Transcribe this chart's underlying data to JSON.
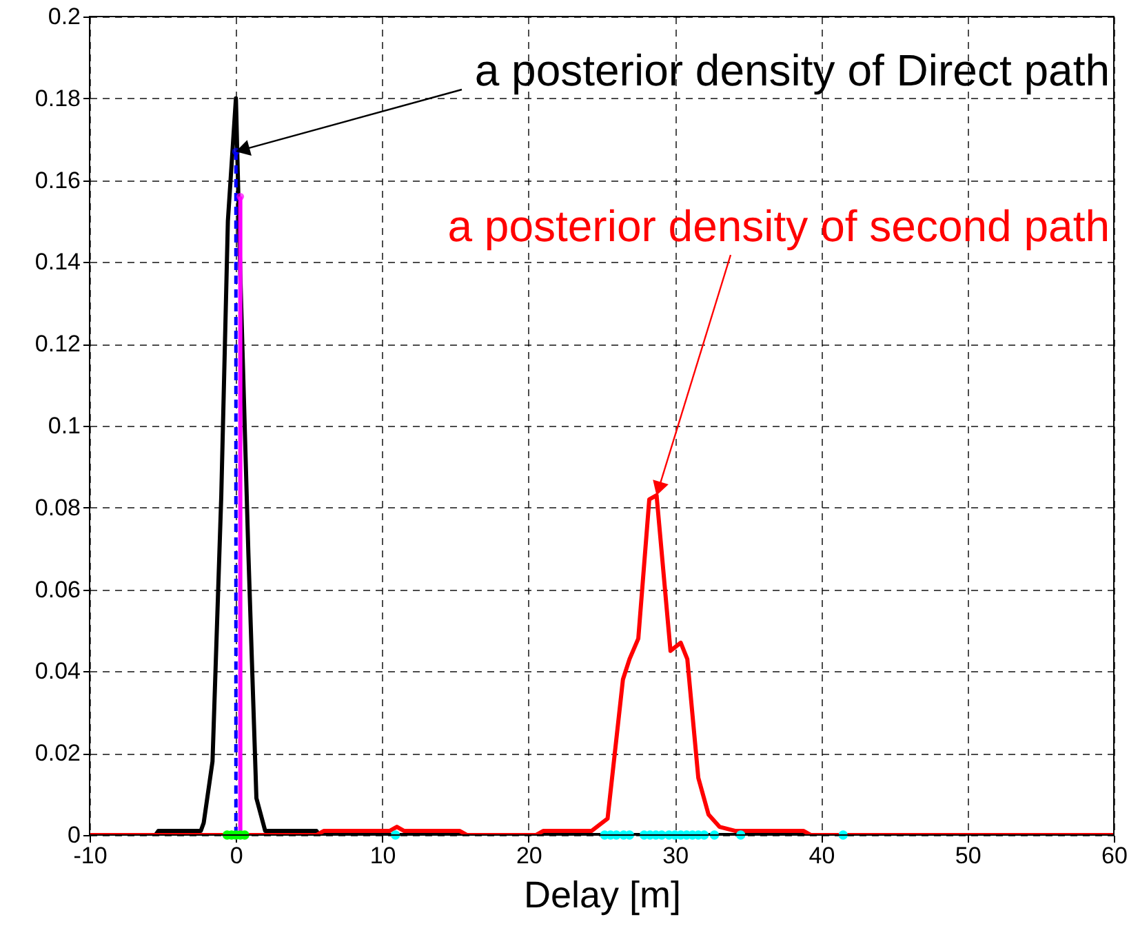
{
  "chart_data": {
    "type": "line",
    "xlabel": "Delay [m]",
    "xlim": [
      -10,
      60
    ],
    "xticks": [
      -10,
      0,
      10,
      20,
      30,
      40,
      50,
      60
    ],
    "ylim": [
      0,
      0.2
    ],
    "yticks": [
      0,
      0.02,
      0.04,
      0.06,
      0.08,
      0.1,
      0.12,
      0.14,
      0.16,
      0.18,
      0.2
    ],
    "grid": true,
    "annotations": [
      {
        "text": "a posterior density of Direct path",
        "x": 0,
        "y": 0.167
      },
      {
        "text": "a posterior density of second path",
        "x": 28.75,
        "y": 0.083
      }
    ],
    "series": [
      {
        "color": "#000000",
        "x": [
          -10,
          -5.5,
          -5.3,
          -2.4,
          -2.2,
          -1.6,
          -1,
          -0.55,
          0,
          0.3,
          0.85,
          1.4,
          2,
          2.2,
          5.5,
          5.7,
          60
        ],
        "values": [
          0,
          0,
          0.001,
          0.001,
          0.003,
          0.018,
          0.083,
          0.15,
          0.18,
          0.137,
          0.069,
          0.009,
          0.001,
          0.001,
          0.001,
          0,
          0
        ]
      },
      {
        "color": "#ff0000",
        "x": [
          -10,
          5.5,
          6,
          10,
          10.5,
          11,
          11.5,
          12,
          15.3,
          15.8,
          20.5,
          21,
          24.3,
          25.4,
          26.45,
          26.9,
          27.5,
          28.25,
          28.75,
          29.7,
          30.4,
          30.85,
          31.6,
          32.3,
          33.05,
          34.15,
          38.8,
          39.3,
          60
        ],
        "values": [
          0,
          0,
          0.001,
          0.001,
          0.001,
          0.002,
          0.001,
          0.001,
          0.001,
          0,
          0,
          0.001,
          0.001,
          0.004,
          0.038,
          0.043,
          0.048,
          0.082,
          0.083,
          0.045,
          0.047,
          0.043,
          0.014,
          0.005,
          0.002,
          0.001,
          0.001,
          0,
          0
        ]
      },
      {
        "color": "#0000ff",
        "x": [
          0,
          0
        ],
        "values": [
          0,
          0.167
        ],
        "line_style": "dashed",
        "marker": "circle"
      },
      {
        "color": "#ff00ff",
        "x": [
          0.3,
          0.3
        ],
        "values": [
          0,
          0.156
        ],
        "marker": "circle"
      },
      {
        "type": "scatter",
        "color": "#00ff00",
        "x": [
          -0.6,
          -0.3,
          0,
          0.3,
          0.6
        ],
        "values": [
          0,
          0,
          0,
          0,
          0
        ],
        "marker": "circle"
      },
      {
        "type": "scatter",
        "color": "#00ffff",
        "x": [
          10.9,
          25.2,
          25.6,
          26,
          26.5,
          26.9,
          27.9,
          28.3,
          28.7,
          29.1,
          29.6,
          30,
          30.4,
          30.8,
          31.2,
          31.6,
          32,
          32.7,
          34.5,
          41.5
        ],
        "values": [
          0,
          0,
          0,
          0,
          0,
          0,
          0,
          0,
          0,
          0,
          0,
          0,
          0,
          0,
          0,
          0,
          0,
          0,
          0,
          0
        ],
        "marker": "circle"
      }
    ]
  }
}
